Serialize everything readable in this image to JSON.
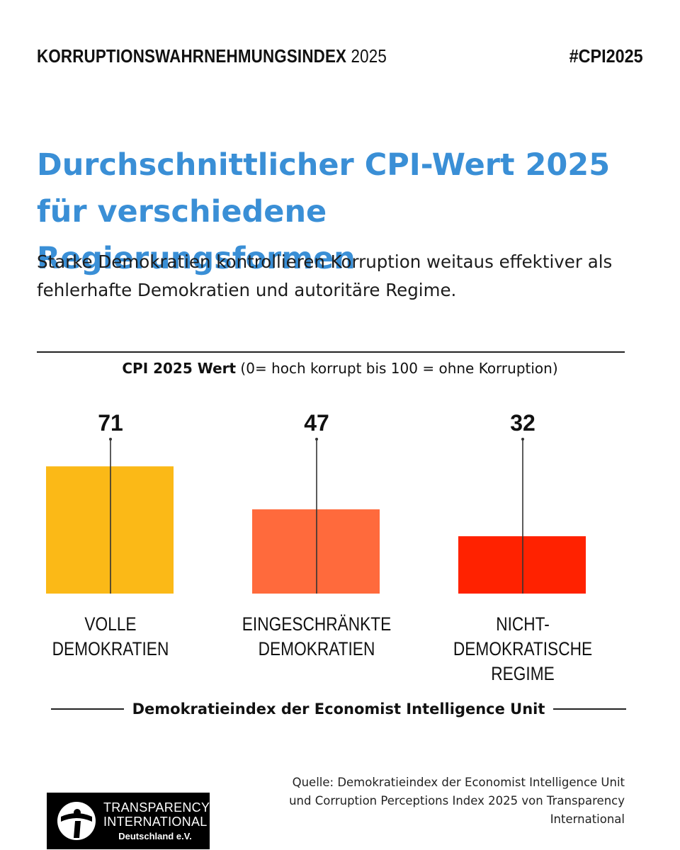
{
  "header": {
    "title_bold": "KORRUPTIONSWAHRNEHMUNGSINDEX",
    "title_year": "2025",
    "hashtag": "#CPI2025"
  },
  "headline": "Durchschnittlicher CPI-Wert 2025 für verschiedene Regierungsformen",
  "subline": "Starke Demokratien kontrollieren Korruption weitaus effektiver als fehlerhafte Demokratien und autoritäre Regime.",
  "chart_data": {
    "type": "bar",
    "title": "Durchschnittlicher CPI-Wert 2025 für verschiedene Regierungsformen",
    "ylabel_bold": "CPI 2025 Wert",
    "ylabel_rest": "(0= hoch korrupt bis 100 = ohne Korruption)",
    "xlabel": "Demokratieindex der Economist Intelligence Unit",
    "categories": [
      [
        "VOLLE",
        "DEMOKRATIEN"
      ],
      [
        "EINGESCHRÄNKTE",
        "DEMOKRATIEN"
      ],
      [
        "NICHT-DEMOKRATISCHE",
        "REGIME"
      ]
    ],
    "values": [
      71,
      47,
      32
    ],
    "colors": [
      "#fbb917",
      "#ff6a3c",
      "#ff2200"
    ],
    "ylim": [
      0,
      100
    ],
    "grid": false,
    "legend": "none"
  },
  "source": "Quelle: Demokratieindex der Economist Intelligence Unit und Corruption Perceptions Index 2025 von Transparency International",
  "logo": {
    "line1": "TRANSPARENCY",
    "line2": "INTERNATIONAL",
    "line3": "Deutschland e.V.",
    "icon": "transparency-international-logo-icon"
  }
}
